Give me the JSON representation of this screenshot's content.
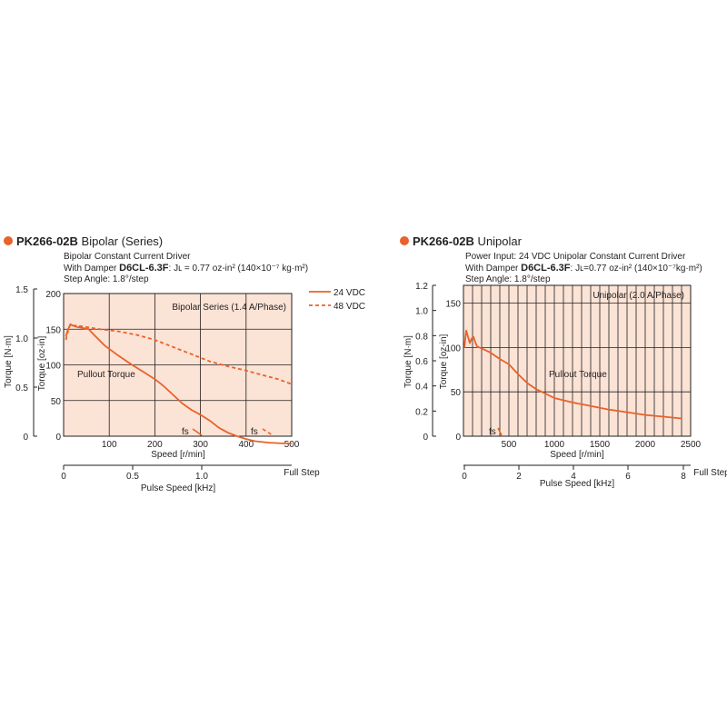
{
  "colors": {
    "accent": "#e8622a",
    "fill": "#fbe3d6",
    "grid": "#231f20"
  },
  "chart_data": [
    {
      "type": "line",
      "title_bold": "PK266-02B",
      "title_rest": " Bipolar (Series)",
      "info": {
        "line1": "Bipolar Constant Current Driver",
        "line2_pre": "With Damper ",
        "line2_bold": "D6CL-6.3F",
        "line2_post": ": Jʟ = 0.77 oz-in² (140×10⁻⁷ kg·m²)",
        "line3": "Step Angle: 1.8°/step"
      },
      "box_label": "Bipolar Series (1.4 A/Phase)",
      "region_label": "Pullout Torque",
      "xlabel": "Speed [r/min]",
      "xlim": [
        0,
        500
      ],
      "xticks": [
        "100",
        "200",
        "300",
        "400",
        "500"
      ],
      "ylabel": "Torque [oz-in]",
      "ylim": [
        0,
        200
      ],
      "yticks": [
        "0",
        "50",
        "100",
        "150",
        "200"
      ],
      "ylabel2": "Torque [N·m]",
      "yticks2": [
        "0",
        "0.5",
        "1.0",
        "1.5"
      ],
      "x2label": "Pulse Speed [kHz]",
      "x2ticks": [
        "0",
        "0.5",
        "1.0",
        "Full Step"
      ],
      "legend": [
        {
          "name": "24 VDC",
          "style": "solid"
        },
        {
          "name": "48 VDC",
          "style": "dashed"
        }
      ],
      "legend_placement": "top-right outside",
      "series": [
        {
          "name": "24 VDC",
          "style": "solid",
          "x": [
            5,
            10,
            15,
            20,
            30,
            40,
            55,
            70,
            90,
            120,
            150,
            180,
            200,
            220,
            240,
            260,
            280,
            300,
            320,
            340,
            360,
            380,
            400,
            420,
            450,
            480,
            500
          ],
          "y": [
            140,
            150,
            157,
            155,
            153,
            152,
            150,
            140,
            127,
            113,
            100,
            88,
            80,
            70,
            58,
            46,
            37,
            30,
            22,
            12,
            5,
            0,
            -4,
            -7,
            -9,
            -10,
            -10
          ]
        },
        {
          "name": "48 VDC",
          "style": "dashed",
          "x": [
            5,
            10,
            15,
            20,
            30,
            50,
            80,
            120,
            160,
            200,
            240,
            280,
            320,
            360,
            400,
            440,
            470,
            500
          ],
          "y": [
            135,
            148,
            157,
            155,
            155,
            153,
            150,
            147,
            142,
            135,
            125,
            115,
            105,
            98,
            92,
            85,
            80,
            73
          ]
        }
      ],
      "fs_labels": [
        "fs",
        "fs"
      ]
    },
    {
      "type": "line",
      "title_bold": "PK266-02B",
      "title_rest": " Unipolar",
      "info": {
        "line1": "Power Input: 24 VDC   Unipolar Constant Current Driver",
        "line2_pre": "With Damper ",
        "line2_bold": "D6CL-6.3F",
        "line2_post": ": Jʟ=0.77 oz-in² (140×10⁻⁷kg·m²)",
        "line3": "Step Angle: 1.8°/step"
      },
      "box_label": "Unipolar (2.0 A/Phase)",
      "region_label": "Pullout Torque",
      "xlabel": "Speed [r/min]",
      "xlim": [
        0,
        2500
      ],
      "xticks": [
        "500",
        "1000",
        "1500",
        "2000",
        "2500"
      ],
      "ylabel": "Torque [oz-in]",
      "ylim": [
        0,
        170
      ],
      "yticks": [
        "0",
        "50",
        "100",
        "150"
      ],
      "ylabel2": "Torque [N·m]",
      "yticks2": [
        "0",
        "0.2",
        "0.4",
        "0.6",
        "0.8",
        "1.0",
        "1.2"
      ],
      "x2label": "Pulse Speed [kHz]",
      "x2ticks": [
        "0",
        "2",
        "4",
        "6",
        "8",
        "Full Step"
      ],
      "legend": [],
      "series": [
        {
          "name": "",
          "style": "solid",
          "x": [
            10,
            30,
            50,
            70,
            90,
            110,
            130,
            150,
            200,
            300,
            400,
            500,
            600,
            700,
            800,
            900,
            1000,
            1200,
            1400,
            1600,
            1800,
            2000,
            2200,
            2400
          ],
          "y": [
            100,
            119,
            112,
            105,
            110,
            112,
            106,
            101,
            99,
            94,
            87,
            81,
            70,
            60,
            53,
            48,
            43,
            38,
            34,
            30,
            27,
            24,
            22,
            20
          ]
        }
      ],
      "fs_labels": [
        "fs"
      ]
    }
  ]
}
